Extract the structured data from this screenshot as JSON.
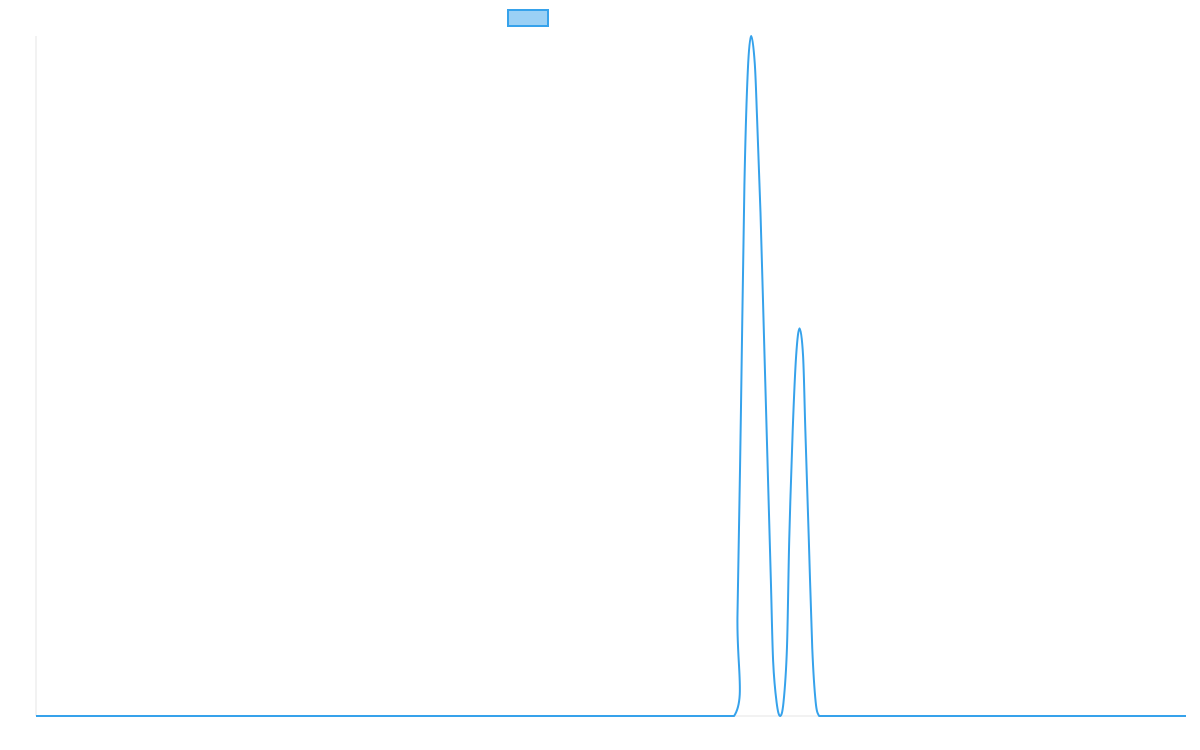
{
  "chart_data": {
    "type": "line",
    "title": "",
    "xlabel": "",
    "ylabel": "",
    "grid": false,
    "legend_position": "top-center",
    "colors": {
      "series_line": "#36a2eb",
      "legend_fill": "#9ad0f5",
      "axis_line": "#e5e5e5"
    },
    "xlim": [
      0,
      1
    ],
    "ylim": [
      0,
      1
    ],
    "series": [
      {
        "x": [
          0.0,
          0.55,
          0.607,
          0.61,
          0.613,
          0.616,
          0.619,
          0.622,
          0.625,
          0.627,
          0.63,
          0.633,
          0.636,
          0.639,
          0.641,
          0.644,
          0.647,
          0.65,
          0.653,
          0.655,
          0.658,
          0.661,
          0.664,
          0.667,
          0.669,
          0.672,
          0.675,
          0.678,
          0.681,
          0.684,
          0.687,
          0.69,
          0.694,
          0.697,
          0.7,
          0.703,
          0.706,
          0.709,
          0.712,
          0.715,
          0.1,
          1.0
        ],
        "y": [
          0,
          0,
          0,
          0.15,
          0.45,
          0.78,
          0.95,
          1.0,
          0.96,
          0.88,
          0.74,
          0.56,
          0.38,
          0.2,
          0.08,
          0.02,
          0.0,
          0.02,
          0.1,
          0.26,
          0.42,
          0.53,
          0.57,
          0.53,
          0.42,
          0.26,
          0.1,
          0.02,
          0,
          0,
          0,
          0,
          0,
          0,
          0,
          0,
          0,
          0,
          0,
          0,
          0,
          0
        ]
      }
    ]
  }
}
